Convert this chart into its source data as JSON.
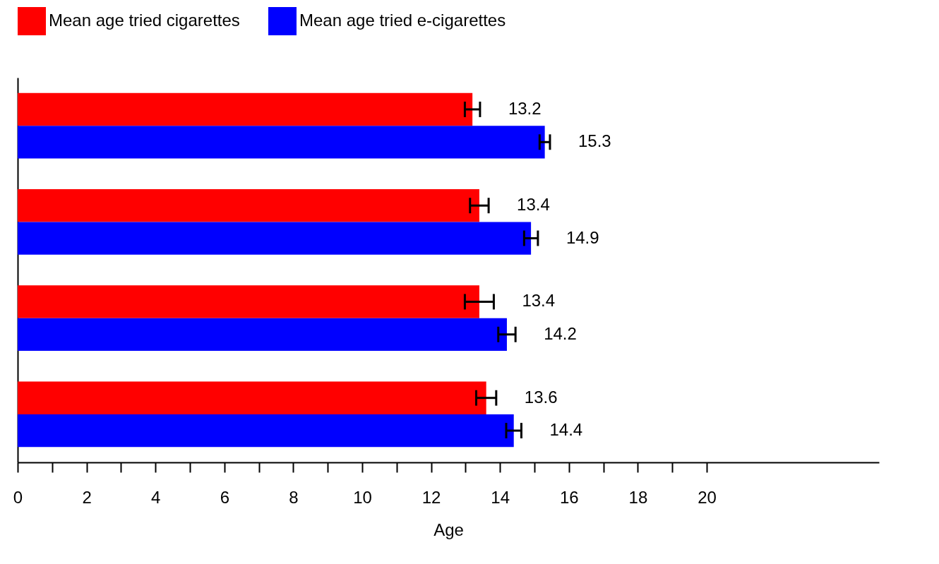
{
  "chart_data": {
    "type": "bar",
    "orientation": "horizontal",
    "xlabel": "Age",
    "categories": [
      null,
      null,
      null,
      null
    ],
    "series": [
      {
        "name": "Mean age tried cigarettes",
        "color": "#ff0000",
        "values": [
          13.2,
          13.4,
          13.4,
          13.6
        ],
        "errors": [
          0.22,
          0.27,
          0.42,
          0.29
        ]
      },
      {
        "name": "Mean age tried e-cigarettes",
        "color": "#0000ff",
        "values": [
          15.3,
          14.9,
          14.2,
          14.4
        ],
        "errors": [
          0.15,
          0.2,
          0.25,
          0.22
        ]
      }
    ],
    "xlim": [
      0,
      25
    ],
    "xticks": [
      0,
      {
        "value": 1,
        "label": null
      },
      2,
      {
        "value": 3,
        "label": null
      },
      4,
      {
        "value": 5,
        "label": null
      },
      6,
      {
        "value": 7,
        "label": null
      },
      8,
      {
        "value": 9,
        "label": null
      },
      10,
      {
        "value": 11,
        "label": null
      },
      12,
      {
        "value": 13,
        "label": null
      },
      14,
      {
        "value": 15,
        "label": null
      },
      16,
      {
        "value": 17,
        "label": null
      },
      18,
      {
        "value": 19,
        "label": null
      },
      20
    ],
    "data_labels": true,
    "grid": false,
    "legend": "top"
  }
}
